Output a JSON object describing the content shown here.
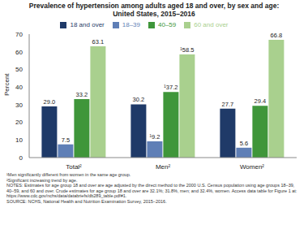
{
  "chart_data": {
    "type": "bar",
    "title": "Prevalence of hypertension among adults aged 18 and over, by sex and age:",
    "subtitle": "United States, 2015–2016",
    "y_label": "Percent",
    "categories": [
      "Total²",
      "Men²",
      "Women²"
    ],
    "series": [
      {
        "name": "18 and over",
        "color": "#1f3a68",
        "values": [
          29.0,
          30.2,
          27.7
        ],
        "value_labels": [
          "29.0",
          "30.2",
          "27.7"
        ]
      },
      {
        "name": "18–39",
        "color": "#5f7fb6",
        "values": [
          7.5,
          9.2,
          5.6
        ],
        "value_labels": [
          "7.5",
          "¹9.2",
          "5.6"
        ]
      },
      {
        "name": "40–59",
        "color": "#3f963a",
        "values": [
          33.2,
          37.2,
          29.4
        ],
        "value_labels": [
          "33.2",
          "¹37.2",
          "29.4"
        ]
      },
      {
        "name": "60 and over",
        "color": "#a9d08e",
        "values": [
          63.1,
          58.5,
          66.8
        ],
        "value_labels": [
          "63.1",
          "¹58.5",
          "66.8"
        ]
      }
    ],
    "ylim": [
      0,
      70
    ],
    "yticks": [
      0,
      10,
      20,
      30,
      40,
      50,
      60,
      70
    ],
    "legend": "top",
    "data_labels": true,
    "notes": [
      "¹Men significantly different from women in the same age group.",
      "²Significant increasing trend by age.",
      "NOTES: Estimates for age group 18 and over are age adjusted by the direct method to the 2000 U.S. Census population using age groups 18–39, 40–59, and 60 and over. Crude estimates for age group 18 and over are 32.1%; 31.8%, men; and 32.4%, women. Access data table for Figure 1 at: https://www.cdc.gov/nchs/data/databriefs/db289_table.pdf#1.",
      "SOURCE: NCHS, National Health and Nutrition Examination Survey, 2015–2016."
    ]
  }
}
